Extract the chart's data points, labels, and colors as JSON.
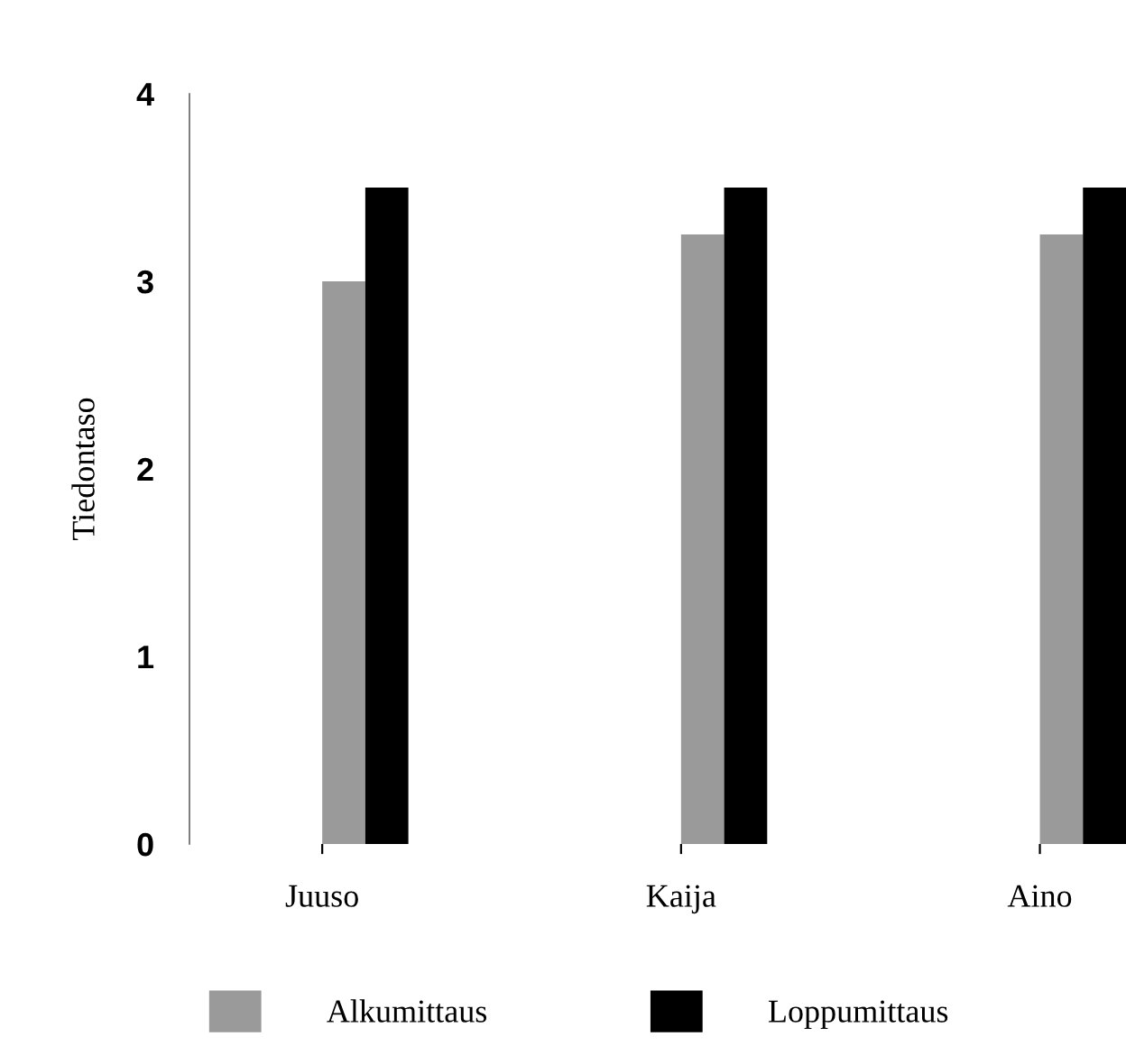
{
  "chart_data": {
    "type": "bar",
    "ylabel": "Tiedontaso",
    "categories": [
      "Juuso",
      "Kaija",
      "Aino"
    ],
    "series": [
      {
        "name": "Alkumittaus",
        "color": "#9a9a9a",
        "values": [
          3.0,
          3.25,
          3.25
        ]
      },
      {
        "name": "Loppumittaus",
        "color": "#000000",
        "values": [
          3.5,
          3.5,
          3.5
        ]
      }
    ],
    "ylim": [
      0,
      4
    ],
    "yticks": [
      0,
      1,
      2,
      3,
      4
    ],
    "grid": false,
    "legend": "bottom"
  }
}
